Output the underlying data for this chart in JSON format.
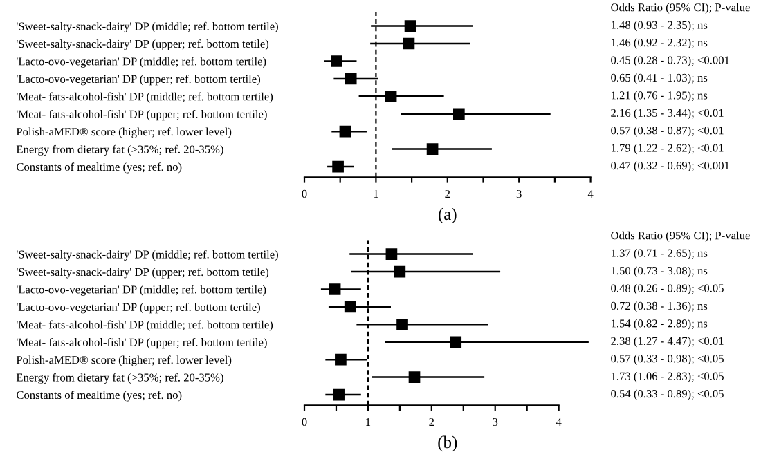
{
  "chart_data": [
    {
      "type": "scatter",
      "orientation": "horizontal",
      "xlabel": "(a)",
      "annotations": [
        "Odds Ratio (95% CI); P-value",
        "1.48 (0.93 - 2.35); ns",
        "1.46 (0.92 - 2.32); ns",
        "0.45 (0.28 - 0.73); <0.001",
        "0.65 (0.41 - 1.03); ns",
        "1.21 (0.76 - 1.95); ns",
        "2.16 (1.35 - 3.44); <0.01",
        "0.57 (0.38 - 0.87); <0.01",
        "1.79 (1.22 - 2.62); <0.01",
        "0.47 (0.32 - 0.69); <0.001"
      ],
      "categories": [
        "'Sweet-salty-snack-dairy' DP (middle; ref. bottom tertile)",
        "'Sweet-salty-snack-dairy' DP (upper; ref. bottom tetile)",
        "'Lacto-ovo-vegetarian' DP (middle; ref. bottom tertile)",
        "'Lacto-ovo-vegetarian' DP (upper; ref. bottom tertile)",
        "'Meat- fats-alcohol-fish' DP (middle; ref. bottom tertile)",
        "'Meat- fats-alcohol-fish' DP (upper; ref. bottom tertile)",
        "Polish-aMED® score (higher; ref. lower level)",
        "Energy from dietary fat (>35%; ref. 20-35%)",
        "Constants of mealtime (yes; ref. no)"
      ],
      "series": [
        {
          "color": "#000000",
          "values": [
            1.48,
            1.46,
            0.45,
            0.65,
            1.21,
            2.16,
            0.57,
            1.79,
            0.47
          ],
          "errors": [
            [
              0.93,
              2.35
            ],
            [
              0.92,
              2.32
            ],
            [
              0.28,
              0.73
            ],
            [
              0.41,
              1.03
            ],
            [
              0.76,
              1.95
            ],
            [
              1.35,
              3.44
            ],
            [
              0.38,
              0.87
            ],
            [
              1.22,
              2.62
            ],
            [
              0.32,
              0.69
            ]
          ]
        }
      ],
      "marker": "square",
      "xlim": [
        0,
        4
      ],
      "xticks": [
        0,
        {
          "value": 0.5,
          "label": null
        },
        1,
        {
          "value": 1.5,
          "label": null
        },
        2,
        {
          "value": 2.5,
          "label": null
        },
        3,
        {
          "value": 3.5,
          "label": null
        },
        4
      ],
      "ref_lines": [
        {
          "axis": "x",
          "value": 1,
          "line_style": "dashed",
          "color": "#000000"
        }
      ],
      "grid": false,
      "legend": false
    },
    {
      "type": "scatter",
      "orientation": "horizontal",
      "xlabel": "(b)",
      "annotations": [
        "Odds Ratio (95% CI); P-value",
        "1.37 (0.71 - 2.65); ns",
        "1.50 (0.73 - 3.08); ns",
        "0.48 (0.26 - 0.89); <0.05",
        "0.72 (0.38 - 1.36); ns",
        "1.54 (0.82 - 2.89); ns",
        "2.38 (1.27 - 4.47); <0.01",
        "0.57 (0.33 - 0.98); <0.05",
        "1.73 (1.06 - 2.83); <0.05",
        "0.54 (0.33 - 0.89); <0.05"
      ],
      "categories": [
        "'Sweet-salty-snack-dairy' DP (middle; ref. bottom tertile)",
        "'Sweet-salty-snack-dairy' DP (upper; ref. bottom tetile)",
        "'Lacto-ovo-vegetarian' DP (middle; ref. bottom tertile)",
        "'Lacto-ovo-vegetarian' DP (upper; ref. bottom tertile)",
        "'Meat- fats-alcohol-fish' DP (middle; ref. bottom tertile)",
        "'Meat- fats-alcohol-fish' DP (upper; ref. bottom tertile)",
        "Polish-aMED® score (higher; ref. lower level)",
        "Energy from dietary fat (>35%; ref. 20-35%)",
        "Constants of mealtime (yes; ref. no)"
      ],
      "series": [
        {
          "color": "#000000",
          "values": [
            1.37,
            1.5,
            0.48,
            0.72,
            1.54,
            2.38,
            0.57,
            1.73,
            0.54
          ],
          "errors": [
            [
              0.71,
              2.65
            ],
            [
              0.73,
              3.08
            ],
            [
              0.26,
              0.89
            ],
            [
              0.38,
              1.36
            ],
            [
              0.82,
              2.89
            ],
            [
              1.27,
              4.47
            ],
            [
              0.33,
              0.98
            ],
            [
              1.06,
              2.83
            ],
            [
              0.33,
              0.89
            ]
          ]
        }
      ],
      "marker": "square",
      "xlim": [
        0,
        4.5
      ],
      "xticks": [
        0,
        {
          "value": 0.5,
          "label": null
        },
        1,
        {
          "value": 1.5,
          "label": null
        },
        2,
        {
          "value": 2.5,
          "label": null
        },
        3,
        {
          "value": 3.5,
          "label": null
        },
        4
      ],
      "ref_lines": [
        {
          "axis": "x",
          "value": 1,
          "line_style": "dashed",
          "color": "#000000"
        }
      ],
      "grid": false,
      "legend": false
    }
  ]
}
